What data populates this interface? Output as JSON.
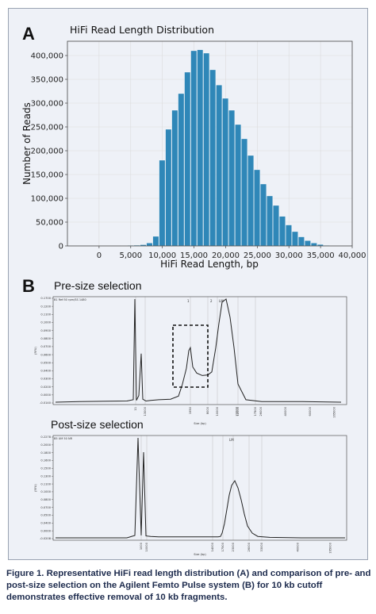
{
  "panels": {
    "a_letter": "A",
    "b_letter": "B"
  },
  "chart_data": [
    {
      "type": "bar",
      "title": "HiFi Read Length Distribution",
      "xlabel": "HiFi Read Length, bp",
      "ylabel": "Number of Reads",
      "xlim": [
        -5000,
        40000
      ],
      "ylim": [
        0,
        430000
      ],
      "xticks": [
        "0",
        "5,000",
        "10,000",
        "15,000",
        "20,000",
        "25,000",
        "30,000",
        "35,000",
        "40,000"
      ],
      "yticks": [
        "0",
        "50,000",
        "100,000",
        "150,000",
        "200,000",
        "250,000",
        "300,000",
        "350,000",
        "400,000"
      ],
      "grid": true,
      "color": "#2f87b8",
      "bin_width": 1000,
      "x": [
        4000,
        5000,
        6000,
        7000,
        8000,
        9000,
        10000,
        11000,
        12000,
        13000,
        14000,
        15000,
        16000,
        17000,
        18000,
        19000,
        20000,
        21000,
        22000,
        23000,
        24000,
        25000,
        26000,
        27000,
        28000,
        29000,
        30000,
        31000,
        32000,
        33000,
        34000,
        35000,
        36000
      ],
      "values": [
        500,
        1000,
        1500,
        2500,
        6000,
        20000,
        180000,
        245000,
        285000,
        320000,
        365000,
        410000,
        412000,
        405000,
        370000,
        338000,
        310000,
        285000,
        255000,
        225000,
        190000,
        160000,
        130000,
        105000,
        85000,
        62000,
        44000,
        30000,
        19000,
        11000,
        6000,
        3000,
        1000
      ]
    },
    {
      "type": "line",
      "title": "Pre-size selection",
      "header_text": "B1 Ref:50 rpm/SS 1480",
      "ylabel": "(RFU)",
      "xlabel": "Size (bp)",
      "ytick_labels": [
        "-0.0140",
        "0.0000",
        "0.0200",
        "0.0300",
        "0.0400",
        "0.0500",
        "0.0600",
        "0.0700",
        "0.0800",
        "0.0900",
        "0.1000",
        "0.1100",
        "0.1200",
        "0.1700"
      ],
      "xtick_labels": [
        "11",
        "13000",
        "1950",
        "8000",
        "10000",
        "12000",
        "17500",
        "22000",
        "26000",
        "40000",
        "60000",
        "165000"
      ],
      "peak_labels": [
        "1",
        "2",
        "LM"
      ],
      "series": [
        {
          "values": [
            0.0,
            0.001,
            0.002,
            0.004,
            0.17,
            0.003,
            0.011,
            0.08,
            0.005,
            0.002,
            0.003,
            0.004,
            0.005,
            0.01,
            0.03,
            0.056,
            0.085,
            0.09,
            0.058,
            0.048,
            0.044,
            0.045,
            0.05,
            0.09,
            0.13,
            0.165,
            0.17,
            0.14,
            0.09,
            0.03,
            0.004,
            0.001,
            0.001,
            0.0
          ]
        }
      ],
      "highlight_box": "dashed"
    },
    {
      "type": "line",
      "title": "Post-size selection",
      "header_text": "B5 UM 50 NR",
      "ylabel": "(RFU)",
      "xlabel": "Size (bp)",
      "ytick_labels": [
        "-0.0208",
        "0.0000",
        "0.0400",
        "0.0500",
        "0.0700",
        "0.0800",
        "0.1000",
        "0.1100",
        "0.1300",
        "0.1500",
        "0.1600",
        "0.1800",
        "0.2000",
        "0.2278"
      ],
      "xtick_labels": [
        "1000",
        "10000",
        "14000",
        "17500",
        "23000",
        "26000",
        "33000",
        "40000",
        "165000"
      ],
      "peak_labels": [
        "LM"
      ],
      "series": [
        {
          "values": [
            0.0,
            0.0,
            0.0,
            0.005,
            0.21,
            0.005,
            0.18,
            0.004,
            0.003,
            0.002,
            0.002,
            0.002,
            0.002,
            0.002,
            0.002,
            0.002,
            0.002,
            0.003,
            0.01,
            0.03,
            0.06,
            0.09,
            0.11,
            0.12,
            0.105,
            0.08,
            0.05,
            0.025,
            0.01,
            0.003,
            0.001,
            0.0,
            0.0,
            0.0
          ]
        }
      ]
    }
  ],
  "caption": "Figure 1. Representative HiFi read length distribution (A) and comparison of pre- and post-size selection on the Agilent Femto Pulse system (B) for 10 kb cutoff demonstrates effective removal of 10 kb fragments."
}
